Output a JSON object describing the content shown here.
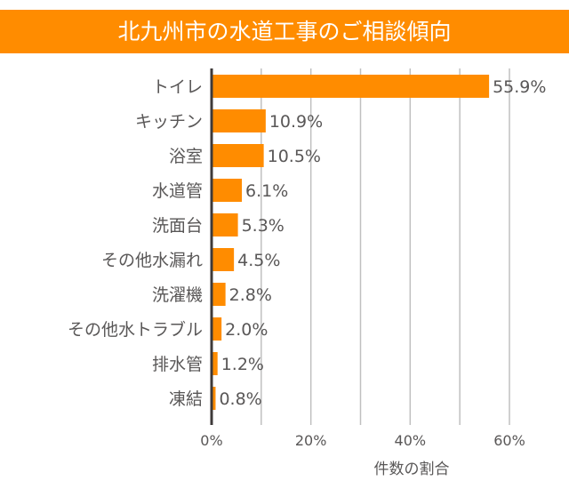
{
  "chart_data": {
    "type": "bar",
    "orientation": "horizontal",
    "title": "北九州市の水道工事のご相談傾向",
    "xlabel": "件数の割合",
    "ylabel": "",
    "categories": [
      "トイレ",
      "キッチン",
      "浴室",
      "水道管",
      "洗面台",
      "その他水漏れ",
      "洗濯機",
      "その他水トラブル",
      "排水管",
      "凍結"
    ],
    "values": [
      55.9,
      10.9,
      10.5,
      6.1,
      5.3,
      4.5,
      2.8,
      2.0,
      1.2,
      0.8
    ],
    "value_labels": [
      "55.9%",
      "10.9%",
      "10.5%",
      "6.1%",
      "5.3%",
      "4.5%",
      "2.8%",
      "2.0%",
      "1.2%",
      "0.8%"
    ],
    "xlim": [
      0,
      60
    ],
    "x_ticks": [
      0,
      20,
      40,
      60
    ],
    "x_tick_labels": [
      "0%",
      "20%",
      "40%",
      "60%"
    ],
    "gridlines_every": 10,
    "grid": true,
    "colors": {
      "bar": "#FF8C00",
      "title_bar": "#FF8C00",
      "text": "#595757",
      "grid": "#C0C0C0",
      "axis": "#3E3A39"
    }
  }
}
